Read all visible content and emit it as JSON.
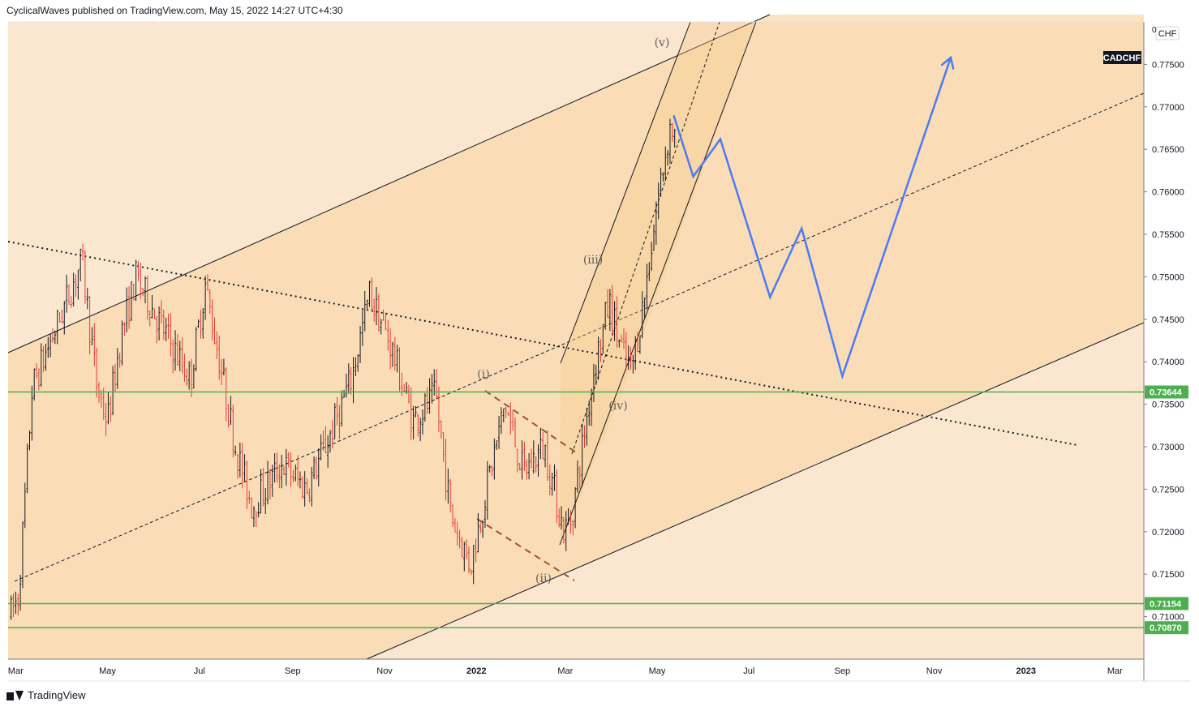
{
  "header": {
    "publisher_line": "CyclicalWaves published on TradingView.com, May 15, 2022 14:27 UTC+4:30"
  },
  "footer": {
    "brand": "TradingView"
  },
  "chart_data": {
    "type": "candlestick",
    "symbol": "CADCHF",
    "currency": "CHF",
    "x_ticks": [
      "Mar",
      "May",
      "Jul",
      "Sep",
      "Nov",
      "2022",
      "Mar",
      "May",
      "Jul",
      "Sep",
      "Nov",
      "2023",
      "Mar"
    ],
    "y_ticks": [
      "0.77500",
      "0.77000",
      "0.76500",
      "0.76000",
      "0.75500",
      "0.75000",
      "0.74500",
      "0.74000",
      "0.73500",
      "0.73000",
      "0.72500",
      "0.72000",
      "0.71500",
      "0.71000"
    ],
    "ylim": [
      0.705,
      0.78
    ],
    "horizontal_levels": [
      {
        "label": "0.73644",
        "value": 0.73644,
        "color": "#4caf50"
      },
      {
        "label": "0.71154",
        "value": 0.71154,
        "color": "#4caf50"
      },
      {
        "label": "0.70870",
        "value": 0.7087,
        "color": "#4caf50"
      }
    ],
    "wave_labels": [
      "(i)",
      "(ii)",
      "(iii)",
      "(iv)",
      "(v)"
    ],
    "projection": {
      "color": "#4a7bf7",
      "points": [
        {
          "date": "2022-05-12",
          "value": 0.769
        },
        {
          "date": "2022-05-25",
          "value": 0.7618
        },
        {
          "date": "2022-06-12",
          "value": 0.7662
        },
        {
          "date": "2022-07-15",
          "value": 0.7476
        },
        {
          "date": "2022-08-05",
          "value": 0.7557
        },
        {
          "date": "2022-09-01",
          "value": 0.7383
        },
        {
          "date": "2022-11-12",
          "value": 0.7758
        }
      ]
    },
    "colors": {
      "up": "#131722",
      "down": "#e53935",
      "background": "#fbe7cf",
      "channel_fill": "#f9d9ad"
    }
  }
}
